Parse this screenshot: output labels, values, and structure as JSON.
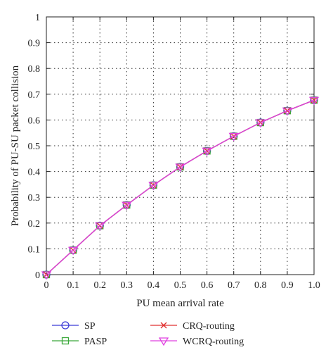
{
  "chart_data": {
    "type": "line",
    "xlabel": "PU mean arrival rate",
    "ylabel": "Probability of PU-SU packet collision",
    "xlim": [
      0,
      1.0
    ],
    "ylim": [
      0,
      1
    ],
    "x_ticks": [
      "0",
      "0.1",
      "0.2",
      "0.3",
      "0.4",
      "0.5",
      "0.6",
      "0.7",
      "0.8",
      "0.9",
      "1.0"
    ],
    "y_ticks": [
      "0",
      "0.1",
      "0.2",
      "0.3",
      "0.4",
      "0.5",
      "0.6",
      "0.7",
      "0.8",
      "0.9",
      "1"
    ],
    "grid": true,
    "legend_position": "bottom",
    "x": [
      0,
      0.1,
      0.2,
      0.3,
      0.4,
      0.5,
      0.6,
      0.7,
      0.8,
      0.9,
      1.0
    ],
    "series": [
      {
        "name": "SP",
        "marker": "circle",
        "color": "#3b3bd6",
        "values": [
          0.0,
          0.095,
          0.19,
          0.27,
          0.347,
          0.418,
          0.48,
          0.537,
          0.59,
          0.636,
          0.677
        ]
      },
      {
        "name": "PASP",
        "marker": "square",
        "color": "#3aa83a",
        "values": [
          0.0,
          0.095,
          0.19,
          0.27,
          0.347,
          0.418,
          0.48,
          0.537,
          0.59,
          0.636,
          0.677
        ]
      },
      {
        "name": "CRQ-routing",
        "marker": "x",
        "color": "#e03030",
        "values": [
          0.0,
          0.095,
          0.19,
          0.27,
          0.347,
          0.418,
          0.48,
          0.537,
          0.59,
          0.636,
          0.677
        ]
      },
      {
        "name": "WCRQ-routing",
        "marker": "triangle-down",
        "color": "#e040e0",
        "values": [
          0.0,
          0.095,
          0.19,
          0.27,
          0.347,
          0.418,
          0.48,
          0.537,
          0.59,
          0.636,
          0.677
        ]
      }
    ]
  }
}
